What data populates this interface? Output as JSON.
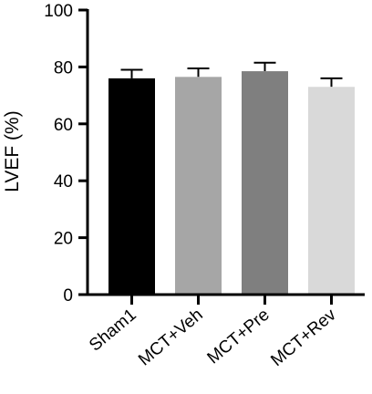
{
  "chart_data": {
    "type": "bar",
    "title": "",
    "xlabel": "",
    "ylabel": "LVEF (%)",
    "ylim": [
      0,
      100
    ],
    "yticks": [
      0,
      20,
      40,
      60,
      80,
      100
    ],
    "ytick_labels": [
      "0",
      "20",
      "40",
      "60",
      "80",
      "100"
    ],
    "categories": [
      "Sham1",
      "MCT+Veh",
      "MCT+Pre",
      "MCT+Rev"
    ],
    "values": [
      76,
      76.5,
      78.5,
      73
    ],
    "errors": [
      3,
      3,
      3,
      3
    ],
    "bar_colors": [
      "#000000",
      "#a6a6a6",
      "#7f7f7f",
      "#d9d9d9"
    ],
    "grid": false,
    "legend": "none"
  }
}
